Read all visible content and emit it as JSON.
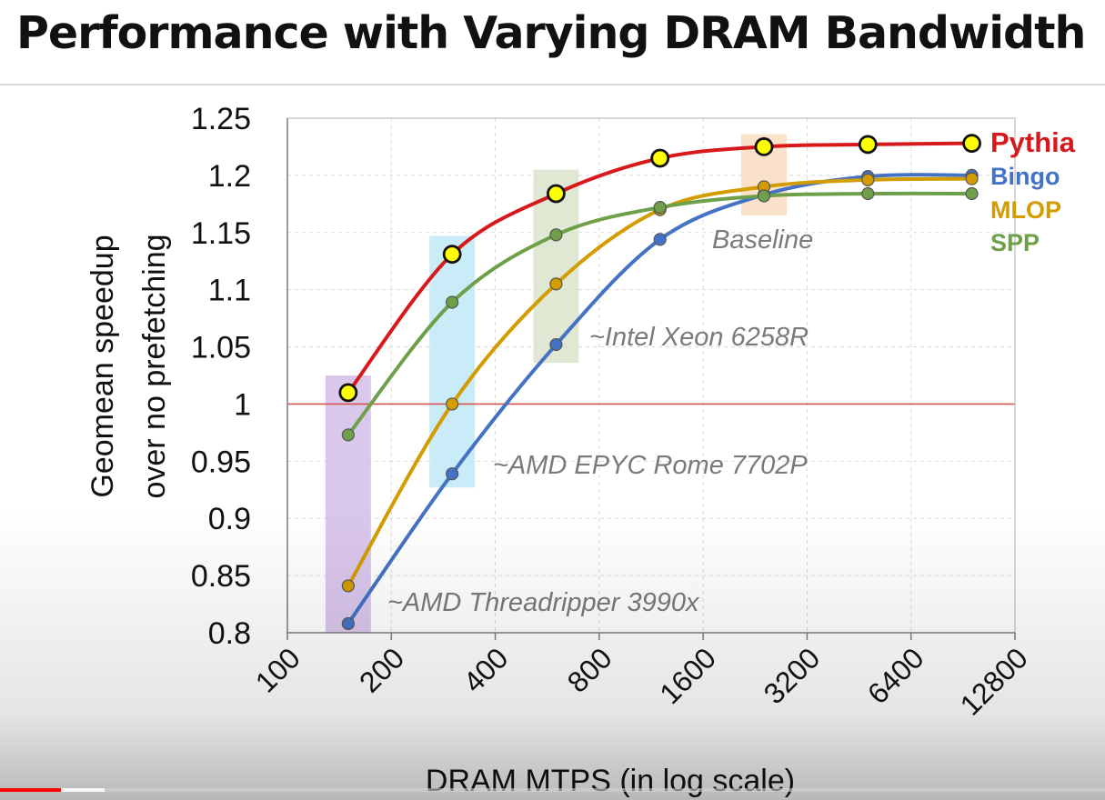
{
  "slide": {
    "title": "Performance with Varying DRAM Bandwidth"
  },
  "video": {
    "progress_fraction": 0.055,
    "buffer_fraction": 0.095
  },
  "chart_data": {
    "type": "line",
    "title": "",
    "xlabel": "DRAM MTPS (in log scale)",
    "ylabel_lines": [
      "Geomean speedup",
      "over no prefetching"
    ],
    "x_scale": "log2",
    "xlim": [
      100,
      12800
    ],
    "ylim": [
      0.8,
      1.25
    ],
    "x_ticks": [
      "100",
      "200",
      "400",
      "800",
      "1600",
      "3200",
      "6400",
      "12800"
    ],
    "y_ticks": [
      "0.8",
      "0.85",
      "0.9",
      "0.95",
      "1",
      "1.05",
      "1.1",
      "1.15",
      "1.2",
      "1.25"
    ],
    "grid": true,
    "x": [
      150,
      300,
      600,
      1200,
      2400,
      4800,
      9600
    ],
    "series": [
      {
        "name": "Pythia",
        "color": "#d7191c",
        "values": [
          1.01,
          1.131,
          1.184,
          1.215,
          1.225,
          1.227,
          1.228
        ]
      },
      {
        "name": "Bingo",
        "color": "#4472c4",
        "values": [
          0.808,
          0.939,
          1.052,
          1.144,
          1.183,
          1.199,
          1.2
        ]
      },
      {
        "name": "MLOP",
        "color": "#d39c00",
        "values": [
          0.841,
          1.0,
          1.105,
          1.17,
          1.19,
          1.196,
          1.197
        ]
      },
      {
        "name": "SPP",
        "color": "#6ea04a",
        "values": [
          0.973,
          1.089,
          1.148,
          1.172,
          1.182,
          1.184,
          1.184
        ]
      }
    ],
    "reference_line": {
      "y": 1.0,
      "color": "#d9534f"
    },
    "highlights": [
      {
        "x": 150,
        "ymin": 0.8,
        "ymax": 1.025,
        "color": "#cdb4e6",
        "label": "~AMD Threadripper 3990x"
      },
      {
        "x": 300,
        "ymin": 0.927,
        "ymax": 1.147,
        "color": "#b8e4f5",
        "label": "~AMD EPYC Rome 7702P"
      },
      {
        "x": 600,
        "ymin": 1.036,
        "ymax": 1.205,
        "color": "#d5dfc3",
        "label": "~Intel Xeon 6258R"
      },
      {
        "x": 2400,
        "ymin": 1.165,
        "ymax": 1.236,
        "color": "#f8d7b8",
        "label": "Baseline"
      }
    ],
    "legend": "right of plot, inline at line ends"
  }
}
